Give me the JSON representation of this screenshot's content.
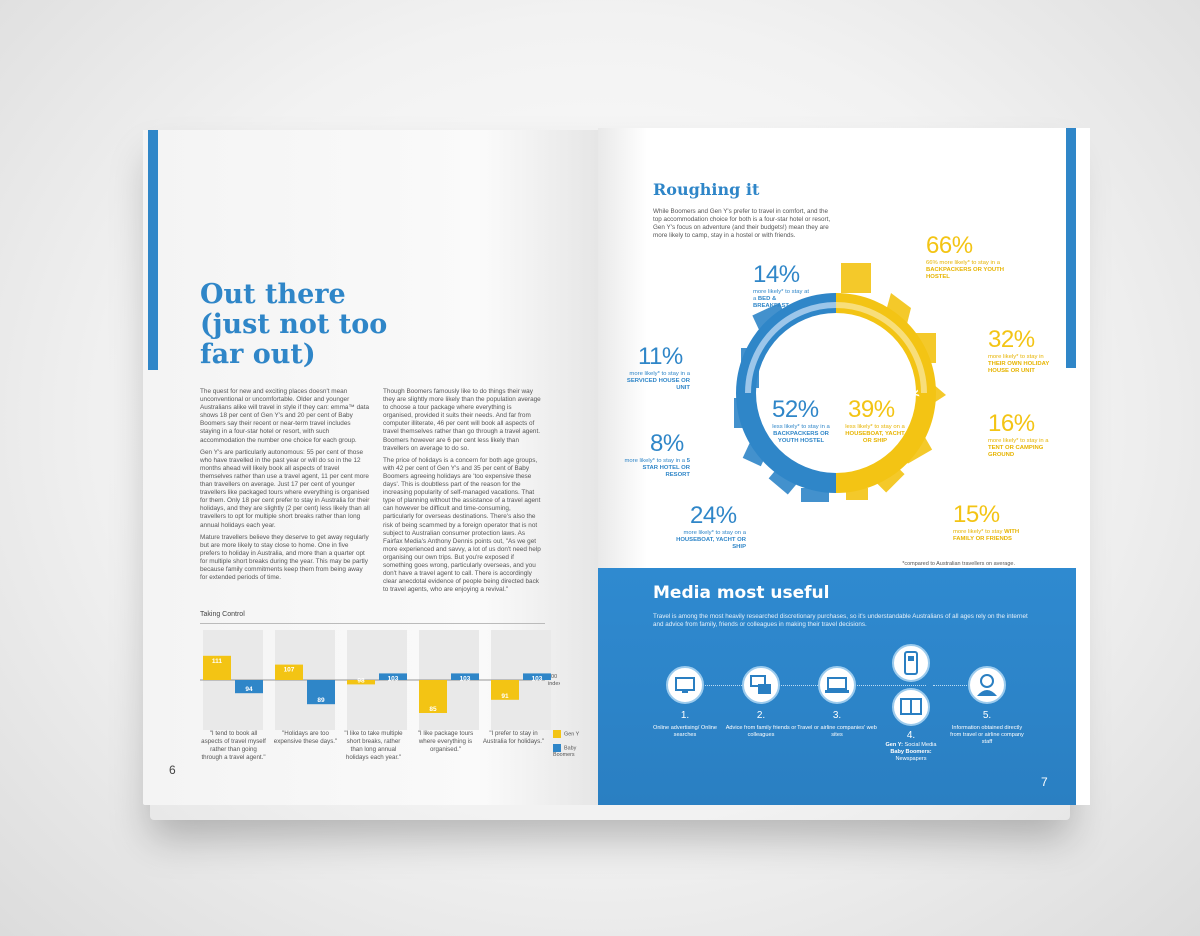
{
  "left_page": {
    "headline": "Out there (just not too far out)",
    "col_a_paragraphs": [
      "The quest for new and exciting places doesn't mean unconventional or uncomfortable. Older and younger Australians alike will travel in style if they can: emma™ data shows 18 per cent of Gen Y's and 20 per cent of Baby Boomers say their recent or near-term travel includes staying in a four-star hotel or resort, with such accommodation the number one choice for each group.",
      "Gen Y's are particularly autonomous: 55 per cent of those who have travelled in the past year or will do so in the 12 months ahead will likely book all aspects of travel themselves rather than use a travel agent, 11 per cent more than travellers on average. Just 17 per cent of younger travellers like packaged tours where everything is organised for them. Only 18 per cent prefer to stay in Australia for their holidays, and they are slightly (2 per cent) less likely than all travellers to opt for multiple short breaks rather than long annual holidays each year.",
      "Mature travellers believe they deserve to get away regularly but are more likely to stay close to home. One in five prefers to holiday in Australia, and more than a quarter opt for multiple short breaks during the year. This may be partly because family commitments keep them from being away for extended periods of time."
    ],
    "col_b_paragraphs": [
      "Though Boomers famously like to do things their way they are slightly more likely than the population average to choose a tour package where everything is organised, provided it suits their needs. And far from computer illiterate, 46 per cent will book all aspects of travel themselves rather than go through a travel agent. Boomers however are 6 per cent less likely than travellers on average to do so.",
      "The price of holidays is a concern for both age groups, with 42 per cent of Gen Y's and 35 per cent of Baby Boomers agreeing holidays are 'too expensive these days'. This is doubtless part of the reason for the increasing popularity of self-managed vacations. That type of planning without the assistance of a travel agent can however be difficult and time-consuming, particularly for overseas destinations. There's also the risk of being scammed by a foreign operator that is not subject to Australian consumer protection laws. As Fairfax Media's Anthony Dennis points out, \"As we get more experienced and savvy, a lot of us don't need help organising our own trips. But you're exposed if something goes wrong, particularly overseas, and you don't have a travel agent to call. There is accordingly clear anecdotal evidence of people being directed back to travel agents, who are enjoying a revival.\""
    ],
    "chart_title": "Taking Control",
    "index_label": "100\nindex",
    "page_number": "6"
  },
  "chart_data": {
    "type": "bar",
    "title": "Taking Control",
    "baseline": 100,
    "categories": [
      "\"I tend to book all aspects of travel myself rather than going through a travel agent.\"",
      "\"Holidays are too expensive these days.\"",
      "\"I like to take multiple short breaks, rather than long annual holidays each year.\"",
      "\"I like package tours where everything is organised.\"",
      "\"I prefer to stay in Australia for holidays.\""
    ],
    "series": [
      {
        "name": "Gen Y",
        "color": "#f3c414",
        "values": [
          111,
          107,
          98,
          85,
          91
        ]
      },
      {
        "name": "Baby Boomers",
        "color": "#2f86c8",
        "values": [
          94,
          89,
          103,
          103,
          103
        ]
      }
    ],
    "legend_position": "right"
  },
  "right_page": {
    "title": "Roughing it",
    "intro": "While Boomers and Gen Y's prefer to travel in comfort, and the top accommodation choice for both is a four-star hotel or resort, Gen Y's focus on adventure (and their budgets!) mean they are more likely to camp, stay in a hostel or with friends.",
    "ring_labels": {
      "left": "Baby Boomers",
      "right": "Gen Y"
    },
    "stats": {
      "bb_center": {
        "pct": "52%",
        "pre": "less likely* to stay in a",
        "bold": "BACKPACKERS OR YOUTH HOSTEL"
      },
      "gy_center": {
        "pct": "39%",
        "pre": "less likely* to stay on a",
        "bold": "HOUSEBOAT, YACHT OR SHIP"
      },
      "bb_1": {
        "pct": "14%",
        "pre": "more likely* to stay at a",
        "bold": "BED & BREAKFAST"
      },
      "bb_2": {
        "pct": "11%",
        "pre": "more likely* to stay in a",
        "bold": "SERVICED HOUSE OR UNIT"
      },
      "bb_3": {
        "pct": "8%",
        "pre": "more likely* to stay in a",
        "bold": "5 STAR HOTEL OR RESORT"
      },
      "bb_4": {
        "pct": "24%",
        "pre": "more likely* to stay on a",
        "bold": "HOUSEBOAT, YACHT OR SHIP"
      },
      "gy_1": {
        "pct": "66%",
        "pre": "66% more likely* to stay in a",
        "bold": "BACKPACKERS OR YOUTH HOSTEL"
      },
      "gy_2": {
        "pct": "32%",
        "pre": "more likely* to stay in",
        "bold": "THEIR OWN HOLIDAY HOUSE OR UNIT"
      },
      "gy_3": {
        "pct": "16%",
        "pre": "more likely* to stay in a",
        "bold": "TENT OR CAMPING GROUND"
      },
      "gy_4": {
        "pct": "15%",
        "pre": "more likely* to stay",
        "bold": "WITH FAMILY OR FRIENDS"
      }
    },
    "footnote": "*compared to Australian travellers on average.",
    "media": {
      "title": "Media most useful",
      "intro": "Travel is among the most heavily researched discretionary purchases, so it's understandable Australians of all ages rely on the internet and advice from family, friends or colleagues in making their travel decisions.",
      "items": [
        {
          "num": "1.",
          "label": "Online advertising/ Online searches",
          "icon": "monitor-icon"
        },
        {
          "num": "2.",
          "label": "Advice from family friends or colleagues",
          "icon": "chat-icon"
        },
        {
          "num": "3.",
          "label": "Travel or airline companies' web sites",
          "icon": "laptop-icon"
        },
        {
          "num": "4.",
          "label_bold_1": "Gen Y:",
          "label_1": "Social Media",
          "label_bold_2": "Baby Boomers:",
          "label_2": "Newspapers",
          "icon": "phone-icon"
        },
        {
          "num": "5.",
          "label": "Information obtained directly from travel or airline company staff",
          "icon": "agent-icon"
        }
      ]
    },
    "page_number": "7"
  },
  "colors": {
    "blue": "#2f86c8",
    "yellow": "#f3c414"
  }
}
